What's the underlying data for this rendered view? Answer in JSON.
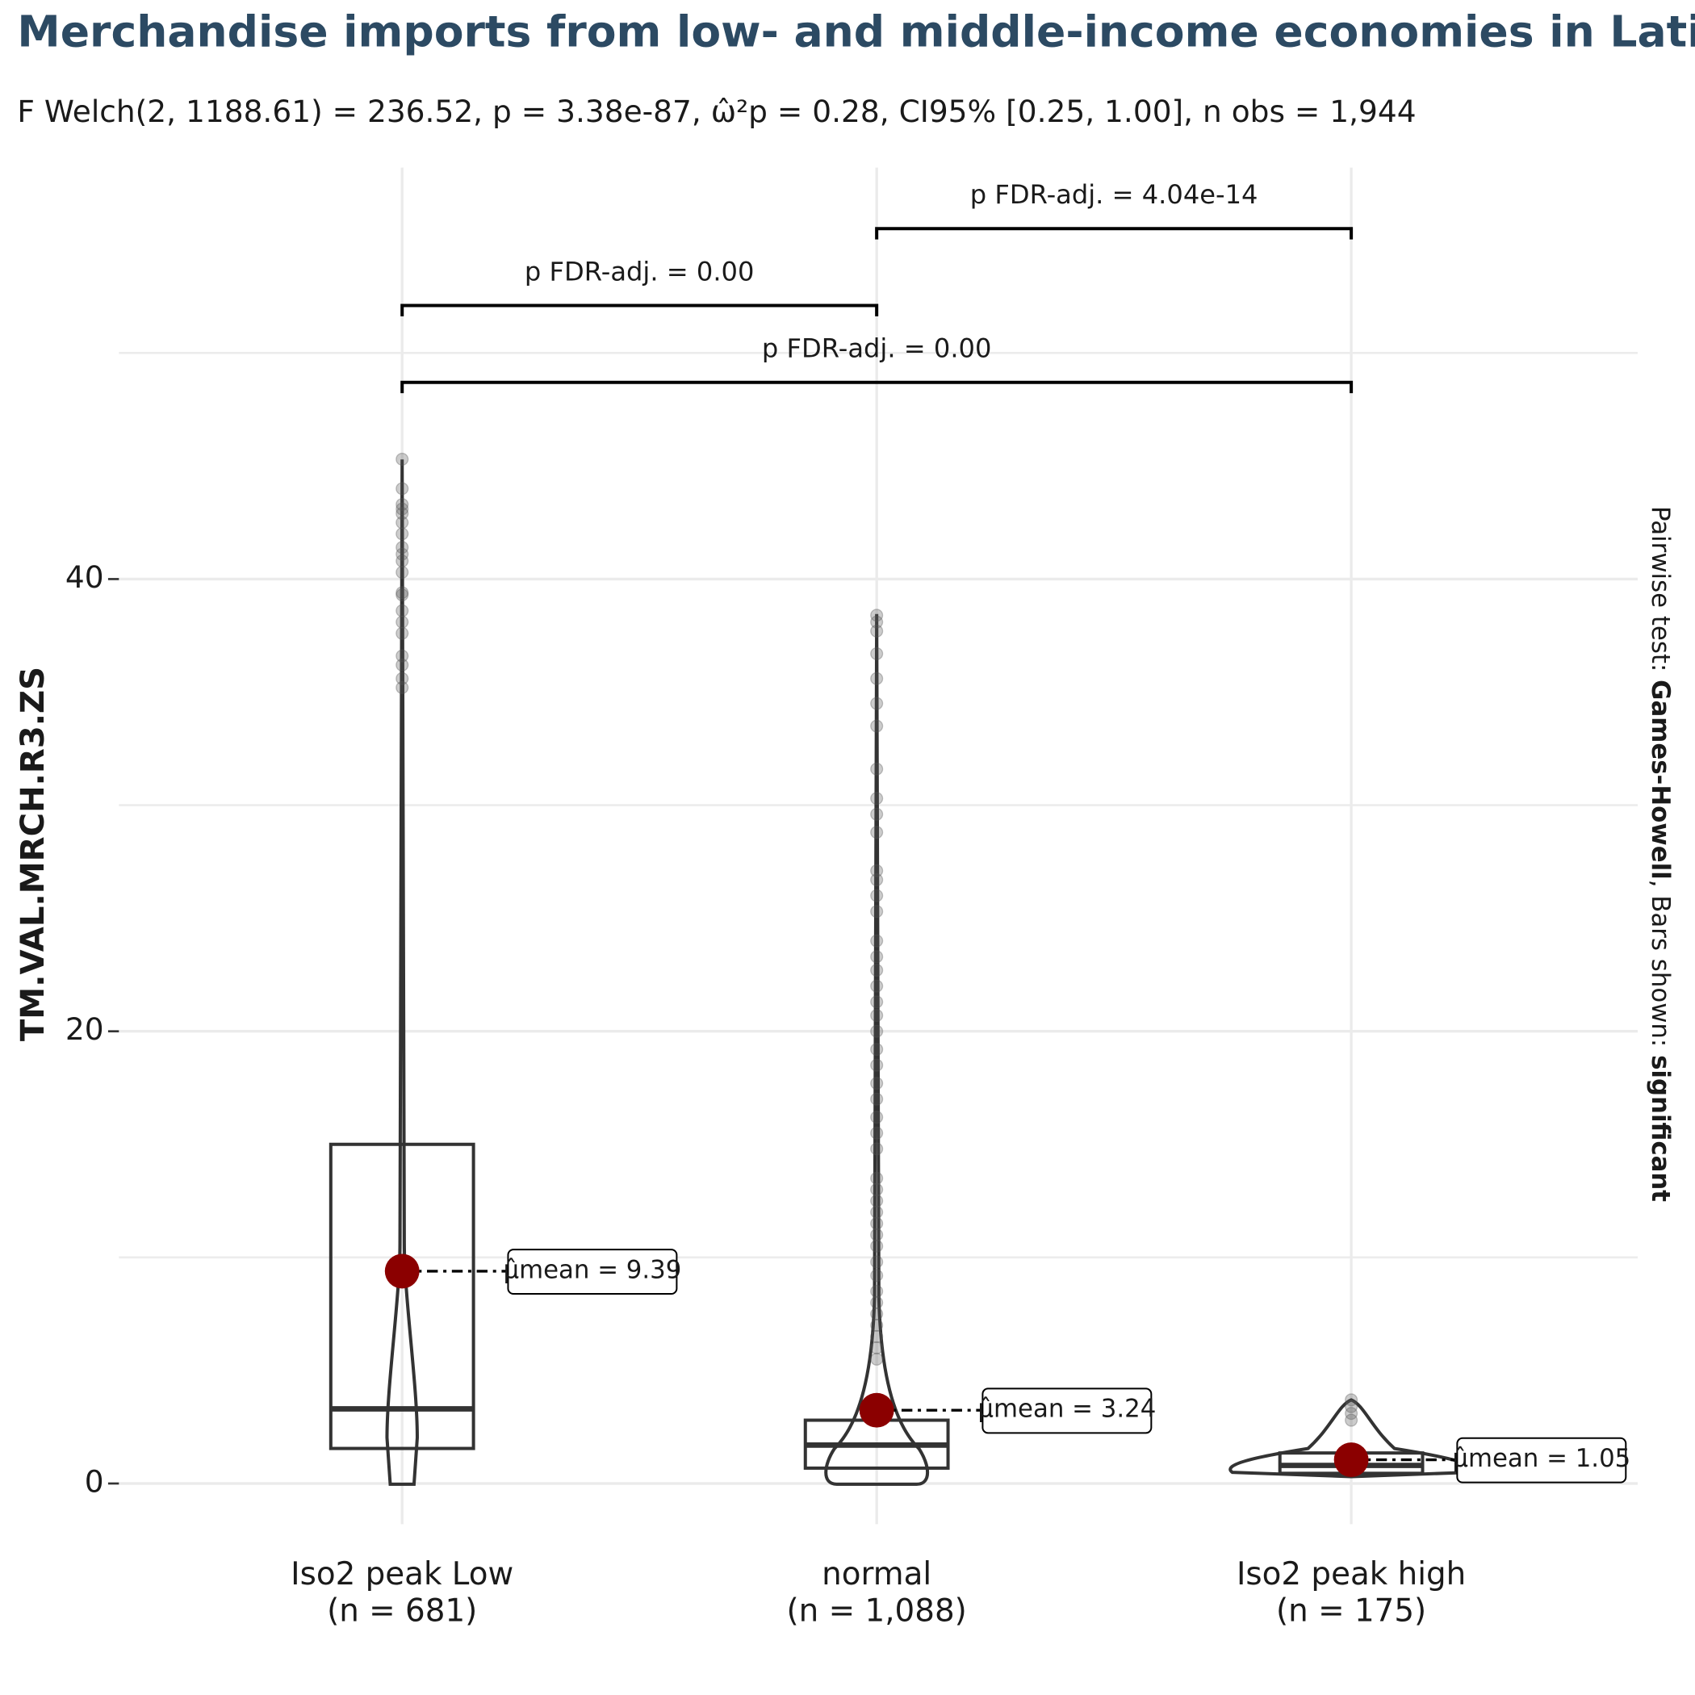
{
  "chart_data": {
    "type": "violin-box",
    "title": "Merchandise imports from low- and middle-income economies in Latin America",
    "subtitle": "F Welch(2, 1188.61) = 236.52, p = 3.38e-87, ω̂²p = 0.28, CI95% [0.25, 1.00], n obs = 1,944",
    "y_label": "TM.VAL.MRCH.R3.ZS",
    "caption_parts": [
      "Pairwise test: ",
      "Games-Howell",
      ", Bars shown: ",
      "significant"
    ],
    "categories": [
      "Iso2 peak  Low",
      "normal",
      "Iso2 peak  high"
    ],
    "n_labels": [
      "(n = 681)",
      "(n = 1,088)",
      "(n = 175)"
    ],
    "q1": [
      1.55,
      0.68,
      0.45
    ],
    "median": [
      3.3,
      1.7,
      0.8
    ],
    "q3": [
      15.0,
      2.8,
      1.35
    ],
    "means": [
      9.39,
      3.24,
      1.05
    ],
    "mean_labels": [
      "μ̂mean = 9.39",
      "μ̂mean = 3.24",
      "μ̂mean = 1.05"
    ],
    "points": [
      [
        35.2,
        35.6,
        36.2,
        36.6,
        37.6,
        38.1,
        38.6,
        39.3,
        39.4,
        40.3,
        40.8,
        41.1,
        41.4,
        42.0,
        42.5,
        42.9,
        43.1,
        43.3,
        44.0,
        45.3
      ],
      [
        5.5,
        6.0,
        6.5,
        7.0,
        7.5,
        8.0,
        8.5,
        9.2,
        9.8,
        10.5,
        11.0,
        11.5,
        12.0,
        12.5,
        13.0,
        13.5,
        14.8,
        15.5,
        16.2,
        17.0,
        17.7,
        18.5,
        19.2,
        20.0,
        20.7,
        21.3,
        22.0,
        22.7,
        23.3,
        24.0,
        25.3,
        26.0,
        26.7,
        27.1,
        28.8,
        29.6,
        30.3,
        31.6,
        33.5,
        34.5,
        35.6,
        36.7,
        37.7,
        38.1,
        38.4
      ],
      [
        2.8,
        3.1,
        3.4,
        3.7
      ]
    ],
    "comparison_labels": [
      "p FDR-adj. = 0.00",
      "p FDR-adj. = 4.04e-14",
      "p FDR-adj. = 0.00"
    ],
    "mean_color": "#8b0000",
    "ylim": [
      -1.8,
      58.2
    ],
    "yticks": [
      0,
      20,
      40
    ],
    "grid": true
  }
}
